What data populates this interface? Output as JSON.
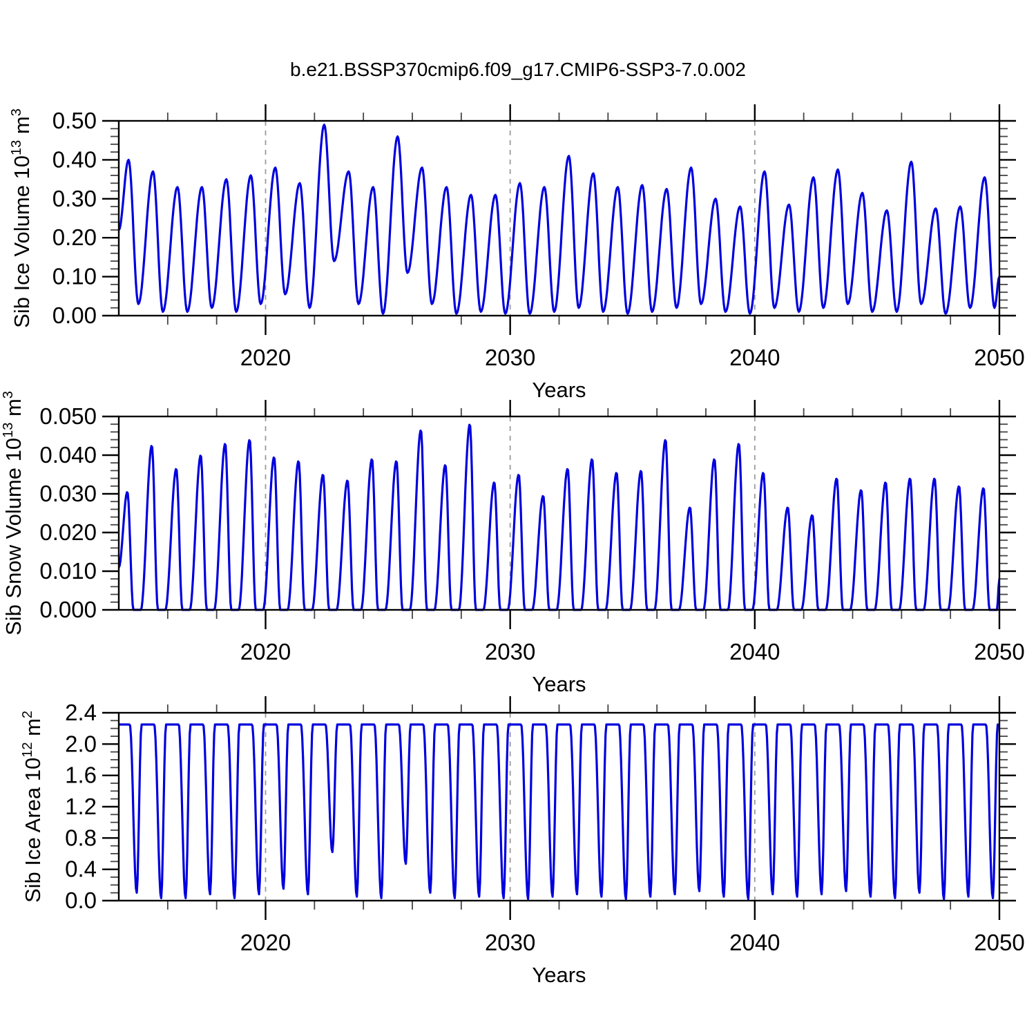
{
  "title": "b.e21.BSSP370cmip6.f09_g17.CMIP6-SSP3-7.0.002",
  "colors": {
    "line": "#0000de",
    "frame": "#000000",
    "grid": "#9a9a9a",
    "minor_tick": "#444444"
  },
  "x_axis": {
    "label": "Years",
    "min": 2014,
    "max": 2050,
    "major_ticks": [
      2020,
      2030,
      2040,
      2050
    ],
    "major_tick_labels": [
      "2020",
      "2030",
      "2040",
      "2050"
    ],
    "minor_step": 2,
    "gridlines": [
      2020,
      2030,
      2040
    ]
  },
  "years": [
    2014,
    2015,
    2016,
    2017,
    2018,
    2019,
    2020,
    2021,
    2022,
    2023,
    2024,
    2025,
    2026,
    2027,
    2028,
    2029,
    2030,
    2031,
    2032,
    2033,
    2034,
    2035,
    2036,
    2037,
    2038,
    2039,
    2040,
    2041,
    2042,
    2043,
    2044,
    2045,
    2046,
    2047,
    2048,
    2049
  ],
  "chart_data": [
    {
      "type": "line",
      "id": "ice-volume",
      "ylabel_parts": [
        {
          "text": "Sib Ice Volume 10",
          "sup": false
        },
        {
          "text": "13",
          "sup": true
        },
        {
          "text": " m",
          "sup": false
        },
        {
          "text": "3",
          "sup": true
        }
      ],
      "ylim": [
        0,
        0.5
      ],
      "ytick_values": [
        0,
        0.1,
        0.2,
        0.3,
        0.4,
        0.5
      ],
      "ytick_labels": [
        "0.00",
        "0.10",
        "0.20",
        "0.30",
        "0.40",
        "0.50"
      ],
      "ytick_minor_step": 0.02,
      "seasonal_shape": {
        "type": "peak_trough",
        "peak_phase": 0.4,
        "trough_phase": 0.8
      },
      "boundary": {
        "start": 0.22,
        "end": 0.1
      },
      "annual_max": [
        0.4,
        0.37,
        0.33,
        0.33,
        0.35,
        0.36,
        0.38,
        0.34,
        0.49,
        0.37,
        0.33,
        0.46,
        0.38,
        0.33,
        0.31,
        0.31,
        0.34,
        0.33,
        0.41,
        0.365,
        0.33,
        0.335,
        0.325,
        0.38,
        0.3,
        0.28,
        0.37,
        0.285,
        0.355,
        0.375,
        0.315,
        0.27,
        0.395,
        0.275,
        0.28,
        0.355
      ],
      "annual_min": [
        0.03,
        0.01,
        0.01,
        0.02,
        0.01,
        0.03,
        0.055,
        0.02,
        0.14,
        0.03,
        0.005,
        0.11,
        0.03,
        0.005,
        0.01,
        0.005,
        0.005,
        0.01,
        0.02,
        0.01,
        0.005,
        0.01,
        0.02,
        0.03,
        0.01,
        0.005,
        0.02,
        0.01,
        0.02,
        0.03,
        0.01,
        0.01,
        0.03,
        0.005,
        0.02,
        0.02
      ]
    },
    {
      "type": "line",
      "id": "snow-volume",
      "ylabel_parts": [
        {
          "text": "Sib Snow Volume 10",
          "sup": false
        },
        {
          "text": "13",
          "sup": true
        },
        {
          "text": " m",
          "sup": false
        },
        {
          "text": "3",
          "sup": true
        }
      ],
      "ylim": [
        0,
        0.05
      ],
      "ytick_values": [
        0,
        0.01,
        0.02,
        0.03,
        0.04,
        0.05
      ],
      "ytick_labels": [
        "0.000",
        "0.010",
        "0.020",
        "0.030",
        "0.040",
        "0.050"
      ],
      "ytick_minor_step": 0.002,
      "seasonal_shape": {
        "type": "peak_flat_trough",
        "peak_phase": 0.35,
        "trough_phase": 0.6,
        "trough_end_phase": 0.9
      },
      "boundary": {
        "start": 0.011,
        "end": 0.008
      },
      "annual_max": [
        0.0305,
        0.0425,
        0.0365,
        0.04,
        0.043,
        0.044,
        0.0395,
        0.0385,
        0.035,
        0.0335,
        0.039,
        0.0385,
        0.0465,
        0.0375,
        0.048,
        0.033,
        0.035,
        0.0295,
        0.0365,
        0.039,
        0.0355,
        0.036,
        0.044,
        0.0265,
        0.039,
        0.043,
        0.0355,
        0.0265,
        0.0245,
        0.034,
        0.031,
        0.033,
        0.034,
        0.034,
        0.032,
        0.0315
      ],
      "annual_min": [
        0,
        0,
        0,
        0,
        0,
        0,
        0,
        0,
        0,
        0,
        0,
        0,
        0,
        0,
        0,
        0,
        0,
        0,
        0,
        0,
        0,
        0,
        0,
        0,
        0,
        0,
        0,
        0,
        0,
        0,
        0,
        0,
        0,
        0,
        0,
        0
      ]
    },
    {
      "type": "line",
      "id": "ice-area",
      "ylabel_parts": [
        {
          "text": "Sib Ice Area 10",
          "sup": false
        },
        {
          "text": "12",
          "sup": true
        },
        {
          "text": " m",
          "sup": false
        },
        {
          "text": "2",
          "sup": true
        }
      ],
      "ylim": [
        0,
        2.4
      ],
      "ytick_values": [
        0,
        0.4,
        0.8,
        1.2,
        1.6,
        2.0,
        2.4
      ],
      "ytick_labels": [
        "0.0",
        "0.4",
        "0.8",
        "1.2",
        "1.6",
        "2.0",
        "2.4"
      ],
      "ytick_minor_step": 0.1,
      "seasonal_shape": {
        "type": "plateau",
        "plateau_start": 0.06,
        "plateau_end": 0.45,
        "trough_phase": 0.73,
        "recover_phase": 0.93
      },
      "boundary": {
        "start": 2.25,
        "end": 2.24
      },
      "annual_max": [
        2.25,
        2.25,
        2.25,
        2.25,
        2.25,
        2.25,
        2.25,
        2.25,
        2.25,
        2.25,
        2.25,
        2.25,
        2.25,
        2.25,
        2.25,
        2.25,
        2.25,
        2.25,
        2.25,
        2.25,
        2.25,
        2.25,
        2.25,
        2.25,
        2.25,
        2.25,
        2.25,
        2.25,
        2.25,
        2.25,
        2.25,
        2.25,
        2.25,
        2.25,
        2.25,
        2.25
      ],
      "annual_min": [
        0.1,
        0.03,
        0.03,
        0.08,
        0.03,
        0.08,
        0.15,
        0.08,
        0.62,
        0.05,
        0.03,
        0.47,
        0.1,
        0.03,
        0.05,
        0.03,
        0.02,
        0.05,
        0.08,
        0.05,
        0.02,
        0.05,
        0.08,
        0.12,
        0.05,
        0.02,
        0.08,
        0.05,
        0.08,
        0.12,
        0.05,
        0.03,
        0.1,
        0.02,
        0.05,
        0.03
      ]
    }
  ]
}
